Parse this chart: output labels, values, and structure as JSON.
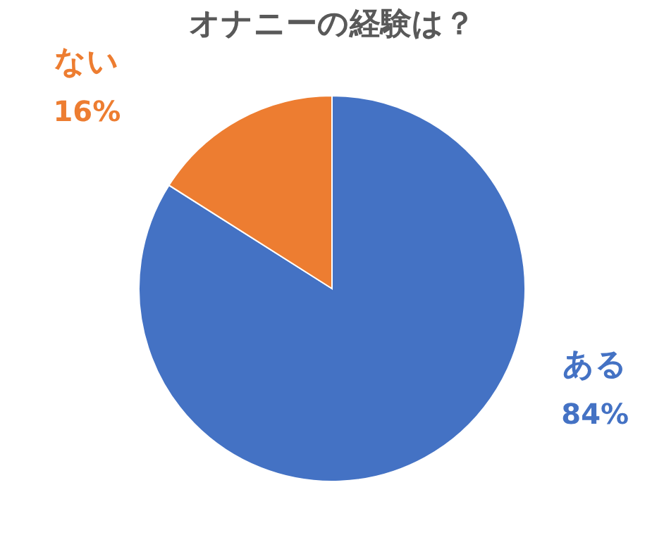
{
  "chart_data": {
    "type": "pie",
    "title": "オナニーの経験は？",
    "categories": [
      "ある",
      "ない"
    ],
    "values": [
      84,
      16
    ],
    "colors": [
      "#4472c4",
      "#ed7d31"
    ],
    "value_labels": [
      "84%",
      "16%"
    ],
    "legend": false
  }
}
